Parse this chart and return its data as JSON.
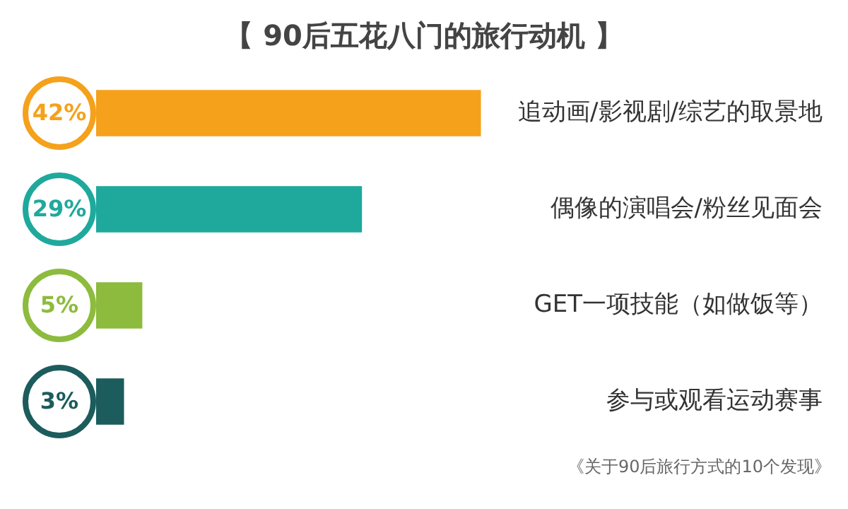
{
  "chart_data": {
    "type": "bar",
    "orientation": "horizontal",
    "title": "【 90后五花八门的旅行动机 】",
    "categories": [
      "追动画/影视剧/综艺的取景地",
      "偶像的演唱会/粉丝见面会",
      "GET一项技能（如做饭等）",
      "参与或观看运动赛事"
    ],
    "values": [
      42,
      29,
      5,
      3
    ],
    "colors": [
      "#f5a11b",
      "#1fa99d",
      "#8dbb3e",
      "#1c5c5c"
    ],
    "value_labels": [
      "42%",
      "29%",
      "5%",
      "3%"
    ],
    "annotations": [
      "《关于90后旅行方式的10个发现》"
    ]
  }
}
